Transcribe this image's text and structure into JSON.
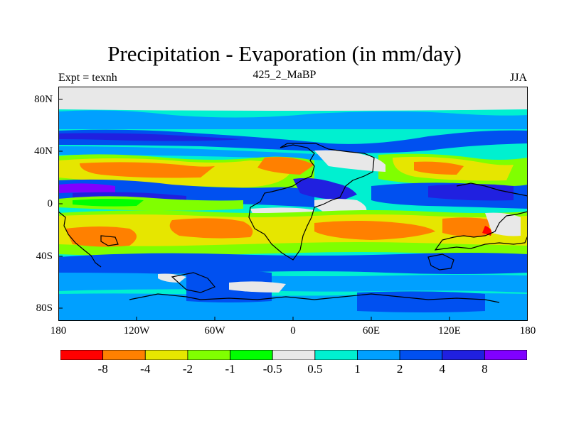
{
  "title": "Precipitation - Evaporation (in mm/day)",
  "subtitle_left": "Expt = texnh",
  "subtitle_center": "425_2_MaBP",
  "subtitle_right": "JJA",
  "y_ticks": [
    "80N",
    "40N",
    "0",
    "40S",
    "80S"
  ],
  "x_ticks": [
    "180",
    "120W",
    "60W",
    "0",
    "60E",
    "120E",
    "180"
  ],
  "colorbar": {
    "colors": [
      "#ff0000",
      "#ff8000",
      "#e6e600",
      "#80ff00",
      "#00ff00",
      "#e8e8e8",
      "#00f0d0",
      "#00a0ff",
      "#0050f0",
      "#2020e0",
      "#8000ff"
    ],
    "labels": [
      "-8",
      "-4",
      "-2",
      "-1",
      "-0.5",
      "0.5",
      "1",
      "2",
      "4",
      "8"
    ]
  },
  "chart_data": {
    "type": "heatmap",
    "title": "Precipitation - Evaporation (in mm/day)",
    "xlabel": "",
    "ylabel": "",
    "x_range": [
      -180,
      180
    ],
    "y_range": [
      -90,
      90
    ],
    "levels": [
      -8,
      -4,
      -2,
      -1,
      -0.5,
      0.5,
      1,
      2,
      4,
      8
    ],
    "zonal_bands_approx": [
      {
        "lat_range": [
          70,
          90
        ],
        "value_class": "-0.5 to 0.5"
      },
      {
        "lat_range": [
          55,
          70
        ],
        "value_class": "0.5 to 2"
      },
      {
        "lat_range": [
          40,
          55
        ],
        "value_class": "2 to 8"
      },
      {
        "lat_range": [
          20,
          40
        ],
        "value_class": "-4 to -1"
      },
      {
        "lat_range": [
          0,
          15
        ],
        "value_class": "2 to 8"
      },
      {
        "lat_range": [
          -35,
          -10
        ],
        "value_class": "-8 to -2"
      },
      {
        "lat_range": [
          -60,
          -40
        ],
        "value_class": "1 to 4"
      },
      {
        "lat_range": [
          -90,
          -70
        ],
        "value_class": "0.5 to 4"
      }
    ]
  }
}
